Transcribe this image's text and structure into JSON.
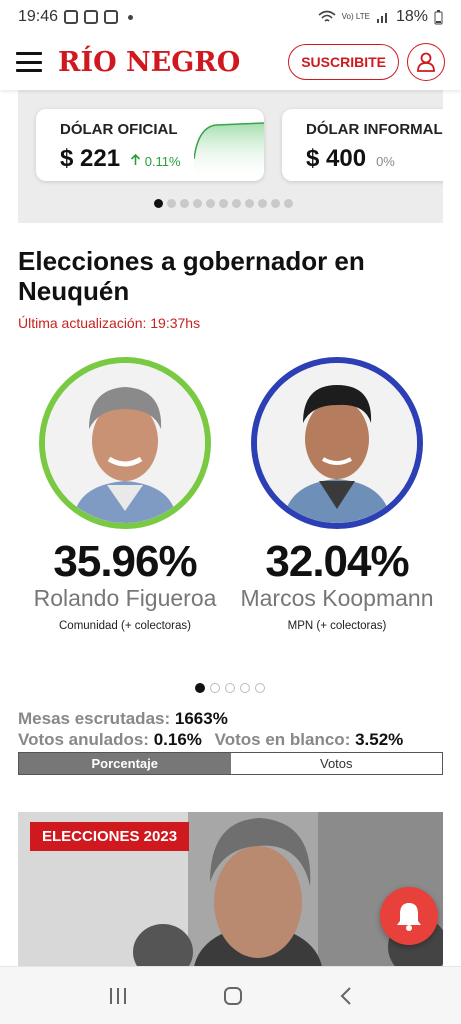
{
  "status_bar": {
    "time": "19:46",
    "battery": "18%",
    "network": "Vo) LTE"
  },
  "header": {
    "logo": "RÍO NEGRO",
    "subscribe_label": "SUSCRIBITE"
  },
  "currency": {
    "cards": [
      {
        "title": "DÓLAR OFICIAL",
        "value": "$ 221",
        "change": "0.11%",
        "trend": "up"
      },
      {
        "title": "DÓLAR INFORMAL",
        "value": "$ 400",
        "change": "0%",
        "trend": "flat"
      }
    ],
    "dots_count": 11,
    "active_dot": 0
  },
  "elections": {
    "title": "Elecciones a gobernador en Neuquén",
    "updated": "Última actualización: 19:37hs",
    "candidates": [
      {
        "percentage": "35.96%",
        "name": "Rolando Figueroa",
        "party": "Comunidad (+ colectoras)",
        "ring_color": "#7ac943"
      },
      {
        "percentage": "32.04%",
        "name": "Marcos Koopmann",
        "party": "MPN (+ colectoras)",
        "ring_color": "#2c3fb4"
      }
    ],
    "stats": {
      "mesas_label": "Mesas escrutadas:",
      "mesas_value": "1663%",
      "anulados_label": "Votos anulados:",
      "anulados_value": "0.16%",
      "blanco_label": "Votos en blanco:",
      "blanco_value": "3.52%"
    },
    "toggle": {
      "option_1": "Porcentaje",
      "option_2": "Votos"
    }
  },
  "news": {
    "tag": "ELECCIONES 2023"
  },
  "colors": {
    "brand_red": "#d0191f",
    "positive_green": "#2a9d3a"
  }
}
